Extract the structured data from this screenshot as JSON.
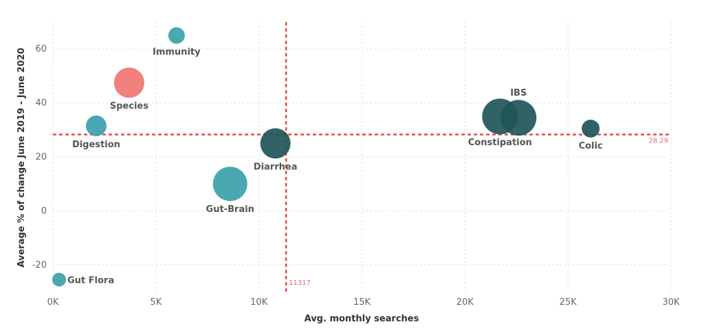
{
  "chart_data": {
    "type": "scatter",
    "title": "",
    "xlabel": "Avg. monthly searches",
    "ylabel": "Average % of change June 2019 - June 2020",
    "xlim": [
      0,
      30000
    ],
    "ylim": [
      -30,
      70
    ],
    "x_ticks": [
      {
        "value": 0,
        "label": "0K"
      },
      {
        "value": 5000,
        "label": "5K"
      },
      {
        "value": 10000,
        "label": "10K"
      },
      {
        "value": 15000,
        "label": "15K"
      },
      {
        "value": 20000,
        "label": "20K"
      },
      {
        "value": 25000,
        "label": "25K"
      },
      {
        "value": 30000,
        "label": "30K"
      }
    ],
    "y_ticks": [
      {
        "value": -20,
        "label": "-20"
      },
      {
        "value": 0,
        "label": "0"
      },
      {
        "value": 20,
        "label": "20"
      },
      {
        "value": 40,
        "label": "40"
      },
      {
        "value": 60,
        "label": "60"
      }
    ],
    "grid": true,
    "reference_lines": [
      {
        "axis": "x",
        "value": 11317,
        "label": "11317",
        "color": "#e84a4a"
      },
      {
        "axis": "y",
        "value": 28.29,
        "label": "28.29",
        "color": "#e84a4a"
      }
    ],
    "colors": {
      "teal": "#3aa1ab",
      "dark": "#1f5558",
      "salmon": "#f07471"
    },
    "points": [
      {
        "name": "Immunity",
        "x": 6000,
        "y": 65,
        "size": 12,
        "color": "#3aa1ab",
        "label_pos": "below"
      },
      {
        "name": "Species",
        "x": 3700,
        "y": 47.5,
        "size": 22,
        "color": "#f07471",
        "label_pos": "below"
      },
      {
        "name": "Digestion",
        "x": 2100,
        "y": 31.5,
        "size": 15,
        "color": "#3aa1ab",
        "label_pos": "below"
      },
      {
        "name": "Diarrhea",
        "x": 10800,
        "y": 25,
        "size": 22,
        "color": "#1f5558",
        "label_pos": "below-right"
      },
      {
        "name": "Gut-Brain",
        "x": 8600,
        "y": 10,
        "size": 25,
        "color": "#3aa1ab",
        "label_pos": "below"
      },
      {
        "name": "Gut Flora",
        "x": 300,
        "y": -25.5,
        "size": 10,
        "color": "#3aa1ab",
        "label_pos": "right"
      },
      {
        "name": "Constipation",
        "x": 21700,
        "y": 35,
        "size": 26,
        "color": "#1f5558",
        "label_pos": "below"
      },
      {
        "name": "IBS",
        "x": 22600,
        "y": 34.5,
        "size": 26,
        "color": "#1f5558",
        "label_pos": "above"
      },
      {
        "name": "Colic",
        "x": 26100,
        "y": 30.5,
        "size": 13,
        "color": "#1f5558",
        "label_pos": "below"
      }
    ]
  }
}
